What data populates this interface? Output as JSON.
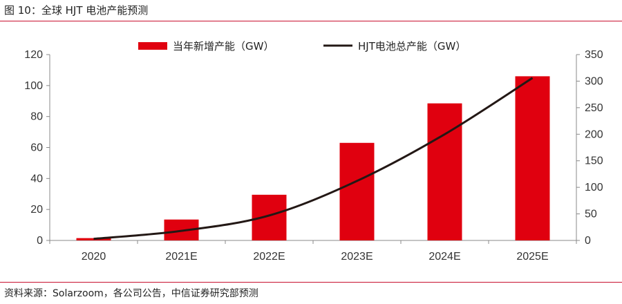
{
  "figure": {
    "title": "图 10：全球 HJT 电池产能预测",
    "source": "资料来源：Solarzoom，各公司公告，中信证券研究部预测"
  },
  "chart_data": {
    "type": "bar",
    "categories": [
      "2020",
      "2021E",
      "2022E",
      "2023E",
      "2024E",
      "2025E"
    ],
    "series": [
      {
        "name": "当年新增产能（GW）",
        "type": "bar",
        "axis": "left",
        "color": "#e0000f",
        "values": [
          1.5,
          13.5,
          29.5,
          63,
          88.5,
          106
        ]
      },
      {
        "name": "HJT电池总产能（GW）",
        "type": "line",
        "axis": "right",
        "color": "#231815",
        "values": [
          3,
          18,
          47,
          112,
          200,
          306
        ]
      }
    ],
    "y_left": {
      "ylim": [
        0,
        120
      ],
      "ticks": [
        0,
        20,
        40,
        60,
        80,
        100,
        120
      ]
    },
    "y_right": {
      "ylim": [
        0,
        350
      ],
      "ticks": [
        0,
        50,
        100,
        150,
        200,
        250,
        300,
        350
      ]
    },
    "legend": "top-center",
    "grid": false
  }
}
